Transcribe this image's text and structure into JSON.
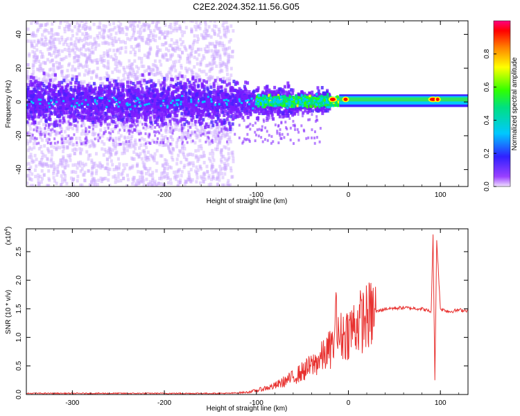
{
  "title": "C2E2.2024.352.11.56.G05",
  "chart_data": [
    {
      "type": "heatmap",
      "xlabel": "Height of straight line (km)",
      "ylabel": "Frequency (Hz)",
      "xlim": [
        -350,
        130
      ],
      "ylim": [
        -50,
        48
      ],
      "xticks": [
        "-300",
        "-200",
        "-100",
        "0",
        "100"
      ],
      "yticks": [
        "40",
        "20",
        "0",
        "-20",
        "-40"
      ],
      "colorbar": {
        "label": "Normalized spectral amplitude",
        "ticks": [
          "0.0",
          "0.2",
          "0.4",
          "0.6",
          "0.8"
        ],
        "range": [
          0,
          1
        ],
        "colormap": "rainbow"
      },
      "regions": [
        {
          "x": [
            -350,
            -130
          ],
          "desc": "broadband scatter",
          "amplitude": 0.05
        },
        {
          "x": [
            -350,
            -30
          ],
          "freq_band": [
            -10,
            10
          ],
          "amplitude": 0.2
        },
        {
          "x": [
            -90,
            -10
          ],
          "freq_band": [
            -4,
            4
          ],
          "amplitude": 0.45
        },
        {
          "x": [
            -10,
            130
          ],
          "freq_band": [
            -2,
            3
          ],
          "amplitude": 0.6
        },
        {
          "x": [
            -20,
            -15
          ],
          "freq": 1.5,
          "amplitude": 1.0
        },
        {
          "x": [
            -5,
            0
          ],
          "freq": 1.5,
          "amplitude": 1.0
        },
        {
          "x": [
            88,
            98
          ],
          "freq": 1.5,
          "amplitude": 0.95
        }
      ]
    },
    {
      "type": "line",
      "xlabel": "Height of straight line (km)",
      "ylabel": "SNR (10 * v/v)",
      "multiplier": "(x10",
      "multiplier_exp": "4",
      "xlim": [
        -350,
        130
      ],
      "ylim": [
        0,
        2.9
      ],
      "xticks": [
        "-300",
        "-200",
        "-100",
        "0",
        "100"
      ],
      "yticks": [
        "0.0",
        "0.5",
        "1.0",
        "1.5",
        "2.0",
        "2.5"
      ],
      "color": "#e8312f",
      "series": [
        {
          "x": [
            -350,
            -200,
            -130,
            -110,
            -100,
            -80,
            -60,
            -40,
            -25,
            -20,
            -10,
            0,
            10,
            20,
            30,
            40,
            60,
            80,
            90,
            92,
            94,
            96,
            100,
            110,
            120,
            130
          ],
          "y": [
            0.02,
            0.02,
            0.02,
            0.04,
            0.07,
            0.15,
            0.3,
            0.5,
            0.7,
            0.8,
            1.0,
            1.1,
            1.25,
            1.35,
            1.45,
            1.5,
            1.52,
            1.5,
            1.45,
            2.8,
            0.25,
            2.7,
            1.5,
            1.45,
            1.48,
            1.47
          ]
        },
        {
          "x": [
            -15,
            -12
          ],
          "y": [
            1.85,
            1.3
          ],
          "desc": "spike"
        }
      ]
    }
  ]
}
